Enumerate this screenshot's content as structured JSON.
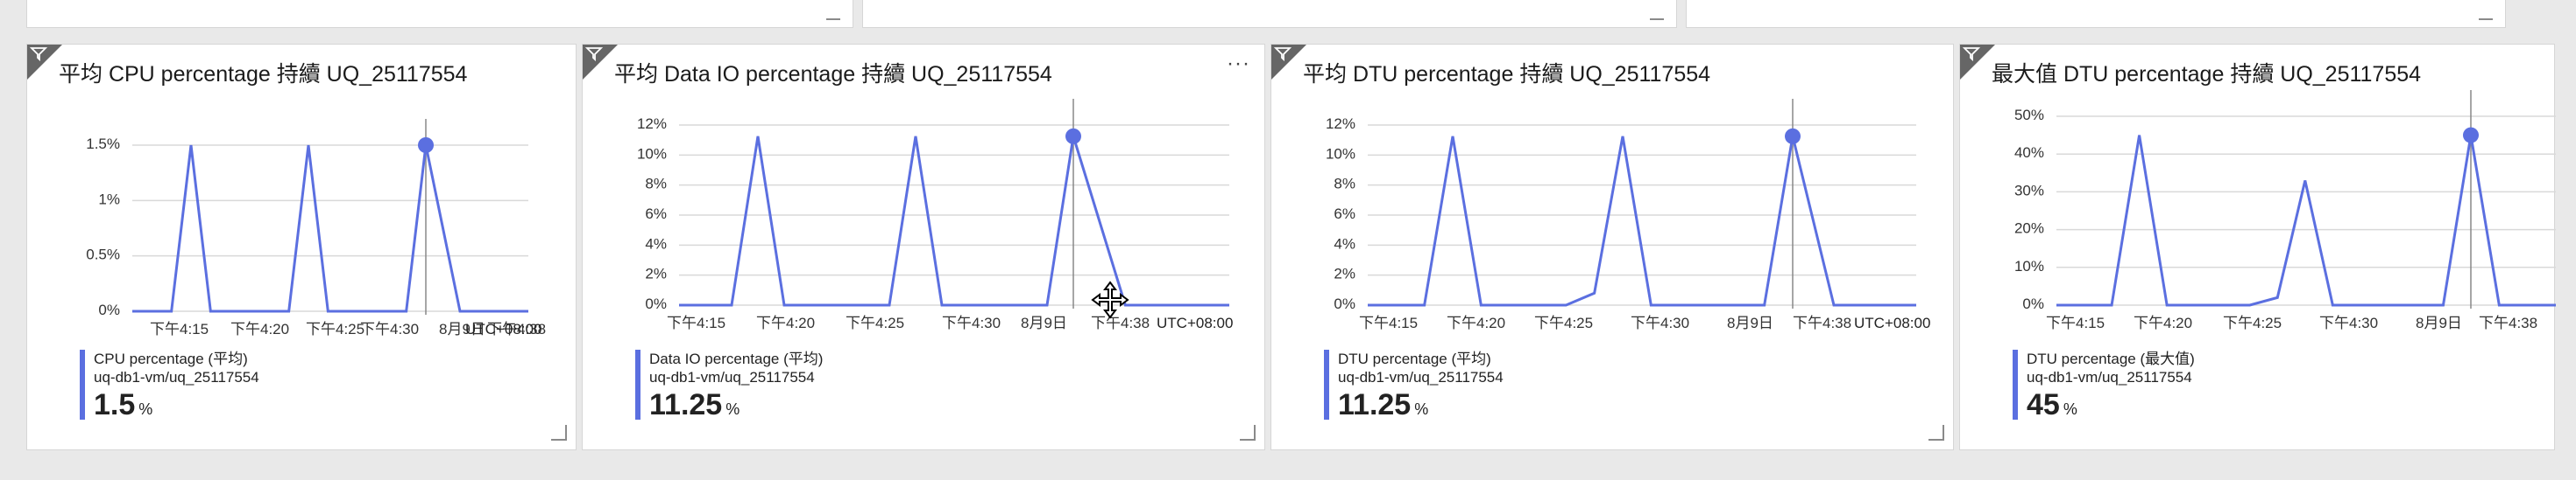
{
  "colors": {
    "series": "#5b6fe0",
    "grid": "#d9d9d9",
    "axis": "#333333"
  },
  "icons": {
    "filter": "filter-icon",
    "more": "more-options-icon",
    "resize": "resize-handle-icon"
  },
  "tiles": [
    {
      "title": "平均 CPU percentage 持續 UQ_25117554",
      "legend": {
        "series": "CPU percentage (平均)",
        "resource": "uq-db1-vm/uq_25117554",
        "value": "1.5",
        "unit": "%"
      },
      "chart_data": {
        "type": "line",
        "y_ticks": [
          "1.5%",
          "1%",
          "0.5%",
          "0%"
        ],
        "ylim": [
          0,
          1.5
        ],
        "x_ticks": [
          "下午4:15",
          "下午4:20",
          "下午4:25",
          "下午4:30",
          "8月9日",
          "下午4:38"
        ],
        "timezone": "UTC+08:00",
        "series": [
          {
            "values": [
              0,
              0,
              0,
              1.5,
              0,
              0,
              0,
              0,
              0,
              1.5,
              0,
              0,
              0,
              0,
              0,
              1.5,
              0,
              0,
              0
            ]
          }
        ]
      }
    },
    {
      "title": "平均 Data IO percentage 持續 UQ_25117554",
      "more": "···",
      "legend": {
        "series": "Data IO percentage (平均)",
        "resource": "uq-db1-vm/uq_25117554",
        "value": "11.25",
        "unit": "%"
      },
      "chart_data": {
        "type": "line",
        "y_ticks": [
          "12%",
          "10%",
          "8%",
          "6%",
          "4%",
          "2%",
          "0%"
        ],
        "ylim": [
          0,
          12
        ],
        "x_ticks": [
          "下午4:15",
          "下午4:20",
          "下午4:25",
          "下午4:30",
          "8月9日",
          "下午4:38"
        ],
        "timezone": "UTC+08:00",
        "series": [
          {
            "values": [
              0,
              0,
              0,
              11.25,
              0,
              0,
              0,
              0,
              0,
              11.25,
              0,
              0,
              0,
              0,
              0,
              11.25,
              0,
              0,
              0
            ]
          }
        ]
      }
    },
    {
      "title": "平均 DTU percentage 持續 UQ_25117554",
      "legend": {
        "series": "DTU percentage (平均)",
        "resource": "uq-db1-vm/uq_25117554",
        "value": "11.25",
        "unit": "%"
      },
      "chart_data": {
        "type": "line",
        "y_ticks": [
          "12%",
          "10%",
          "8%",
          "6%",
          "4%",
          "2%",
          "0%"
        ],
        "ylim": [
          0,
          12
        ],
        "x_ticks": [
          "下午4:15",
          "下午4:20",
          "下午4:25",
          "下午4:30",
          "8月9日",
          "下午4:38"
        ],
        "timezone": "UTC+08:00",
        "series": [
          {
            "values": [
              0,
              0,
              0,
              11.25,
              0,
              0,
              0,
              0,
              0.8,
              11.25,
              0,
              0,
              0,
              0,
              0,
              11.25,
              0,
              0,
              0
            ]
          }
        ]
      }
    },
    {
      "title": "最大值 DTU percentage 持續 UQ_25117554",
      "legend": {
        "series": "DTU percentage (最大值)",
        "resource": "uq-db1-vm/uq_25117554",
        "value": "45",
        "unit": "%"
      },
      "chart_data": {
        "type": "line",
        "y_ticks": [
          "50%",
          "40%",
          "30%",
          "20%",
          "10%",
          "0%"
        ],
        "ylim": [
          0,
          50
        ],
        "x_ticks": [
          "下午4:15",
          "下午4:20",
          "下午4:25",
          "下午4:30",
          "8月9日",
          "下午4:38"
        ],
        "timezone": "",
        "series": [
          {
            "values": [
              0,
              0,
              0,
              45,
              0,
              0,
              0,
              0,
              2,
              33,
              0,
              0,
              0,
              0,
              0,
              45,
              0,
              0,
              0
            ]
          }
        ]
      }
    }
  ]
}
